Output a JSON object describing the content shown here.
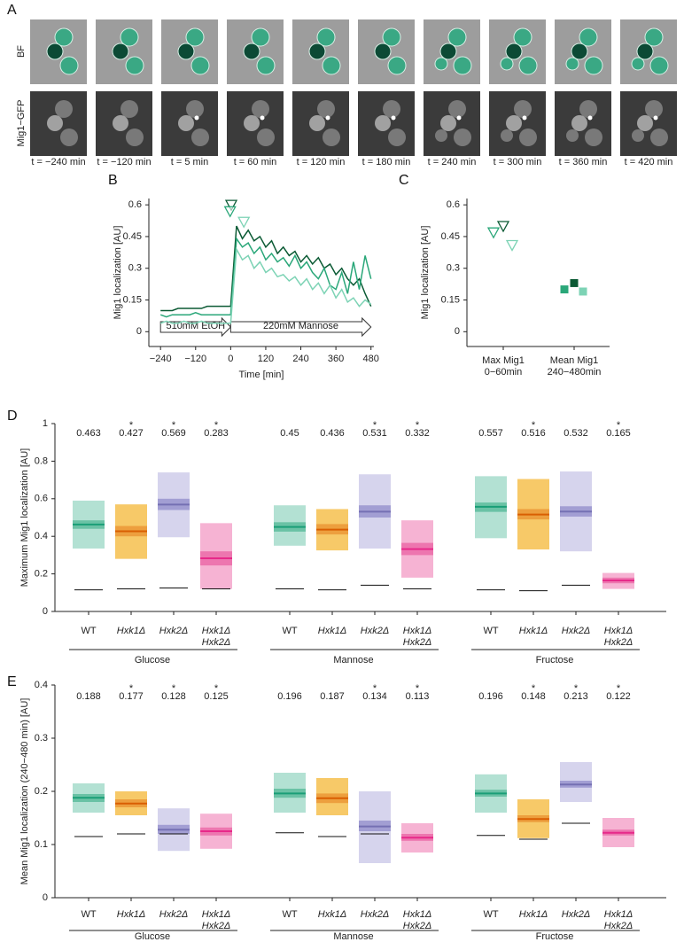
{
  "panel_a": {
    "label": "A",
    "row_labels": [
      "BF",
      "Mig1−GFP"
    ],
    "times": [
      "t = −240 min",
      "t = −120 min",
      "t = 5 min",
      "t = 60 min",
      "t = 120 min",
      "t = 180 min",
      "t = 240 min",
      "t = 300 min",
      "t = 360 min",
      "t = 420 min"
    ]
  },
  "chart_data": [
    {
      "type": "line",
      "label": "B",
      "ylabel": "Mig1 localization [AU]",
      "xlabel": "Time [min]",
      "x": [
        -240,
        -220,
        -200,
        -180,
        -160,
        -140,
        -120,
        -100,
        -80,
        -60,
        -40,
        -20,
        0,
        20,
        40,
        60,
        80,
        100,
        120,
        140,
        160,
        180,
        200,
        220,
        240,
        260,
        280,
        300,
        320,
        340,
        360,
        380,
        400,
        420,
        440,
        460,
        480
      ],
      "series": [
        {
          "color": "#0b5a34",
          "peak_x": 2,
          "peak_y": 0.6,
          "values": [
            0.1,
            0.1,
            0.1,
            0.11,
            0.11,
            0.11,
            0.11,
            0.11,
            0.12,
            0.12,
            0.12,
            0.12,
            0.12,
            0.5,
            0.44,
            0.48,
            0.43,
            0.45,
            0.4,
            0.43,
            0.37,
            0.4,
            0.36,
            0.38,
            0.33,
            0.36,
            0.32,
            0.35,
            0.3,
            0.32,
            0.27,
            0.3,
            0.25,
            0.22,
            0.25,
            0.18,
            0.12
          ]
        },
        {
          "color": "#2aa779",
          "peak_x": -2,
          "peak_y": 0.57,
          "values": [
            0.08,
            0.07,
            0.08,
            0.08,
            0.08,
            0.08,
            0.09,
            0.08,
            0.08,
            0.08,
            0.08,
            0.08,
            0.08,
            0.44,
            0.4,
            0.42,
            0.37,
            0.4,
            0.34,
            0.37,
            0.33,
            0.35,
            0.31,
            0.36,
            0.3,
            0.33,
            0.28,
            0.25,
            0.3,
            0.22,
            0.2,
            0.28,
            0.18,
            0.33,
            0.2,
            0.36,
            0.25
          ]
        },
        {
          "color": "#7dd3b5",
          "peak_x": 45,
          "peak_y": 0.52,
          "values": [
            0.04,
            0.05,
            0.04,
            0.04,
            0.05,
            0.04,
            0.04,
            0.05,
            0.04,
            0.04,
            0.04,
            0.04,
            0.04,
            0.39,
            0.34,
            0.36,
            0.3,
            0.33,
            0.28,
            0.3,
            0.26,
            0.27,
            0.24,
            0.26,
            0.22,
            0.25,
            0.2,
            0.23,
            0.18,
            0.22,
            0.16,
            0.2,
            0.14,
            0.16,
            0.12,
            0.15,
            0.13
          ]
        }
      ],
      "phases": [
        {
          "label": "510mM EtOH",
          "x": [
            -240,
            0
          ]
        },
        {
          "label": "220mM Mannose",
          "x": [
            0,
            480
          ]
        }
      ],
      "xlim": [
        -280,
        490
      ],
      "ylim": [
        -0.07,
        0.63
      ],
      "xticks": [
        {
          "value": -240,
          "label": "−240"
        },
        {
          "value": -120,
          "label": "−120"
        },
        0,
        120,
        240,
        360,
        480
      ],
      "yticks": [
        0,
        0.15,
        0.3,
        0.45,
        0.6
      ]
    },
    {
      "type": "scatter",
      "label": "C",
      "ylabel": "Mig1 localization [AU]",
      "categories": [
        [
          "Max Mig1",
          "0−60min"
        ],
        [
          "Mean Mig1",
          "240−480min"
        ]
      ],
      "markers": [
        "triangle",
        "square"
      ],
      "series": [
        {
          "color": "#0b5a34",
          "values": [
            0.5,
            0.23
          ]
        },
        {
          "color": "#2aa779",
          "values": [
            0.47,
            0.2
          ]
        },
        {
          "color": "#7dd3b5",
          "values": [
            0.41,
            0.19
          ]
        }
      ],
      "ylim": [
        -0.07,
        0.63
      ],
      "yticks": [
        0,
        0.15,
        0.3,
        0.45,
        0.6
      ]
    },
    {
      "type": "box",
      "label": "D",
      "ylabel": "Maximum Mig1 localization [AU]",
      "groups": [
        "Glucose",
        "Mannose",
        "Fructose"
      ],
      "categories": [
        "WT",
        "Hxk1Δ",
        "Hxk2Δ",
        [
          "Hxk1Δ",
          "Hxk2Δ"
        ]
      ],
      "italic": [
        false,
        true,
        true,
        true
      ],
      "series": [
        {
          "color": "#1a9e77",
          "box_color": "#a6dccb",
          "ci_color": "#62bfa0",
          "median": [
            0.463,
            0.45,
            0.557
          ],
          "q_low": [
            0.335,
            0.35,
            0.39
          ],
          "q_high": [
            0.59,
            0.565,
            0.72
          ],
          "ci_low": [
            0.44,
            0.425,
            0.53
          ],
          "ci_high": [
            0.485,
            0.475,
            0.58
          ],
          "baseline": [
            0.115,
            0.12,
            0.115
          ],
          "sig": [
            null,
            null,
            null
          ]
        },
        {
          "color": "#d95f02",
          "box_color": "#f6c04e",
          "ci_color": "#eb9a3a",
          "median": [
            0.427,
            0.436,
            0.516
          ],
          "q_low": [
            0.28,
            0.325,
            0.33
          ],
          "q_high": [
            0.57,
            0.545,
            0.705
          ],
          "ci_low": [
            0.4,
            0.41,
            0.49
          ],
          "ci_high": [
            0.455,
            0.465,
            0.545
          ],
          "baseline": [
            0.12,
            0.115,
            0.11
          ],
          "sig": [
            "*",
            null,
            "*"
          ]
        },
        {
          "color": "#7570b3",
          "box_color": "#cfcdea",
          "ci_color": "#9c98cf",
          "median": [
            0.569,
            0.531,
            0.532
          ],
          "q_low": [
            0.395,
            0.335,
            0.32
          ],
          "q_high": [
            0.74,
            0.73,
            0.745
          ],
          "ci_low": [
            0.54,
            0.5,
            0.505
          ],
          "ci_high": [
            0.6,
            0.565,
            0.56
          ],
          "baseline": [
            0.125,
            0.14,
            0.14
          ],
          "sig": [
            "*",
            "*",
            null
          ]
        },
        {
          "color": "#e7298a",
          "box_color": "#f4a6cb",
          "ci_color": "#ec6fab",
          "median": [
            0.283,
            0.332,
            0.165
          ],
          "q_low": [
            0.12,
            0.18,
            0.12
          ],
          "q_high": [
            0.47,
            0.485,
            0.205
          ],
          "ci_low": [
            0.245,
            0.3,
            0.15
          ],
          "ci_high": [
            0.32,
            0.365,
            0.18
          ],
          "baseline": [
            0.12,
            0.12,
            null
          ],
          "sig": [
            "*",
            "*",
            "*"
          ]
        }
      ],
      "ylim": [
        0,
        1
      ],
      "yticks": [
        0,
        0.2,
        0.4,
        0.6,
        0.8,
        1
      ]
    },
    {
      "type": "box",
      "label": "E",
      "ylabel": "Mean Mig1 localization (240−480 min) [AU]",
      "groups": [
        "Glucose",
        "Mannose",
        "Fructose"
      ],
      "categories": [
        "WT",
        "Hxk1Δ",
        "Hxk2Δ",
        [
          "Hxk1Δ",
          "Hxk2Δ"
        ]
      ],
      "italic": [
        false,
        true,
        true,
        true
      ],
      "series": [
        {
          "color": "#1a9e77",
          "box_color": "#a6dccb",
          "ci_color": "#62bfa0",
          "median": [
            0.188,
            0.196,
            0.196
          ],
          "q_low": [
            0.16,
            0.16,
            0.16
          ],
          "q_high": [
            0.215,
            0.235,
            0.232
          ],
          "ci_low": [
            0.18,
            0.188,
            0.19
          ],
          "ci_high": [
            0.195,
            0.205,
            0.203
          ],
          "baseline": [
            0.115,
            0.122,
            0.117
          ],
          "sig": [
            null,
            null,
            null
          ]
        },
        {
          "color": "#d95f02",
          "box_color": "#f6c04e",
          "ci_color": "#eb9a3a",
          "median": [
            0.177,
            0.187,
            0.148
          ],
          "q_low": [
            0.155,
            0.155,
            0.112
          ],
          "q_high": [
            0.2,
            0.225,
            0.185
          ],
          "ci_low": [
            0.17,
            0.178,
            0.142
          ],
          "ci_high": [
            0.185,
            0.196,
            0.155
          ],
          "baseline": [
            0.12,
            0.115,
            0.11
          ],
          "sig": [
            "*",
            null,
            "*"
          ]
        },
        {
          "color": "#7570b3",
          "box_color": "#cfcdea",
          "ci_color": "#9c98cf",
          "median": [
            0.128,
            0.134,
            0.213
          ],
          "q_low": [
            0.088,
            0.065,
            0.18
          ],
          "q_high": [
            0.168,
            0.2,
            0.255
          ],
          "ci_low": [
            0.12,
            0.125,
            0.207
          ],
          "ci_high": [
            0.137,
            0.145,
            0.22
          ],
          "baseline": [
            0.12,
            0.12,
            0.14
          ],
          "sig": [
            "*",
            "*",
            "*"
          ]
        },
        {
          "color": "#e7298a",
          "box_color": "#f4a6cb",
          "ci_color": "#ec6fab",
          "median": [
            0.125,
            0.113,
            0.122
          ],
          "q_low": [
            0.092,
            0.085,
            0.095
          ],
          "q_high": [
            0.158,
            0.14,
            0.15
          ],
          "ci_low": [
            0.117,
            0.107,
            0.117
          ],
          "ci_high": [
            0.132,
            0.12,
            0.128
          ],
          "baseline": [
            null,
            null,
            null
          ],
          "sig": [
            "*",
            "*",
            "*"
          ]
        }
      ],
      "ylim": [
        0,
        0.4
      ],
      "yticks": [
        0,
        0.1,
        0.2,
        0.3,
        0.4
      ]
    }
  ]
}
